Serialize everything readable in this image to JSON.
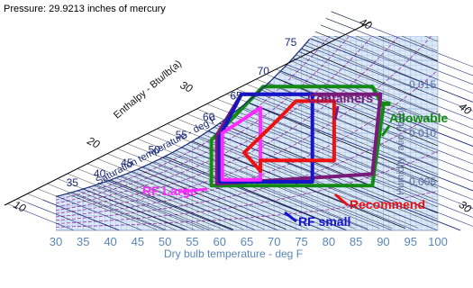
{
  "header": {
    "pressure": "Pressure: 29.9213 inches of mercury"
  },
  "chart_data": {
    "type": "psychrometric",
    "xlabel": "Dry bulb temperature - deg F",
    "xlim": [
      30,
      100
    ],
    "x_ticks": [
      30,
      35,
      40,
      45,
      50,
      55,
      60,
      65,
      70,
      75,
      80,
      85,
      90,
      95,
      100
    ],
    "ylabel": "Humidity ratio (lb/lb)",
    "ylim": [
      0,
      0.02
    ],
    "y_ticks": [
      0.005,
      0.01,
      0.015
    ],
    "enthalpy_axis_label": "Enthalpy - Btu/lb(a)",
    "enthalpy_ticks": [
      10,
      20,
      30,
      40
    ],
    "saturation_label": "Saturation temperature - deg F",
    "saturation_ticks": [
      35,
      40,
      45,
      50,
      55,
      60,
      65,
      70,
      75
    ],
    "regions": [
      {
        "name": "Allowable",
        "color": "#138a13",
        "points": [
          [
            58.5,
            0.0046
          ],
          [
            88,
            0.0046
          ],
          [
            90,
            0.0127
          ],
          [
            88,
            0.0148
          ],
          [
            68,
            0.0148
          ],
          [
            58.5,
            0.0093
          ]
        ]
      },
      {
        "name": "Containers",
        "color": "#7a1a7a",
        "points": [
          [
            59.5,
            0.0048
          ],
          [
            88,
            0.0058
          ],
          [
            89.5,
            0.014
          ],
          [
            64,
            0.014
          ],
          [
            59.5,
            0.0098
          ]
        ]
      },
      {
        "name": "RF small",
        "color": "#1515cc",
        "points": [
          [
            60,
            0.005
          ],
          [
            77,
            0.005
          ],
          [
            77,
            0.014
          ],
          [
            64,
            0.014
          ],
          [
            60,
            0.0096
          ]
        ]
      },
      {
        "name": "RF Large",
        "color": "#ff2bff",
        "points": [
          [
            60.5,
            0.0052
          ],
          [
            67.5,
            0.0052
          ],
          [
            67.5,
            0.0126
          ],
          [
            60.5,
            0.01
          ]
        ]
      },
      {
        "name": "Recommend",
        "color": "#ee1111",
        "points": [
          [
            64.5,
            0.008
          ],
          [
            70,
            0.011
          ],
          [
            74,
            0.0133
          ],
          [
            81,
            0.0133
          ],
          [
            81,
            0.0072
          ],
          [
            67.5,
            0.0072
          ],
          [
            67.5,
            0.0061
          ]
        ]
      }
    ],
    "annotations": [
      "RF Large",
      "Containers",
      "Allowable",
      "RF small",
      "Recommend"
    ]
  }
}
